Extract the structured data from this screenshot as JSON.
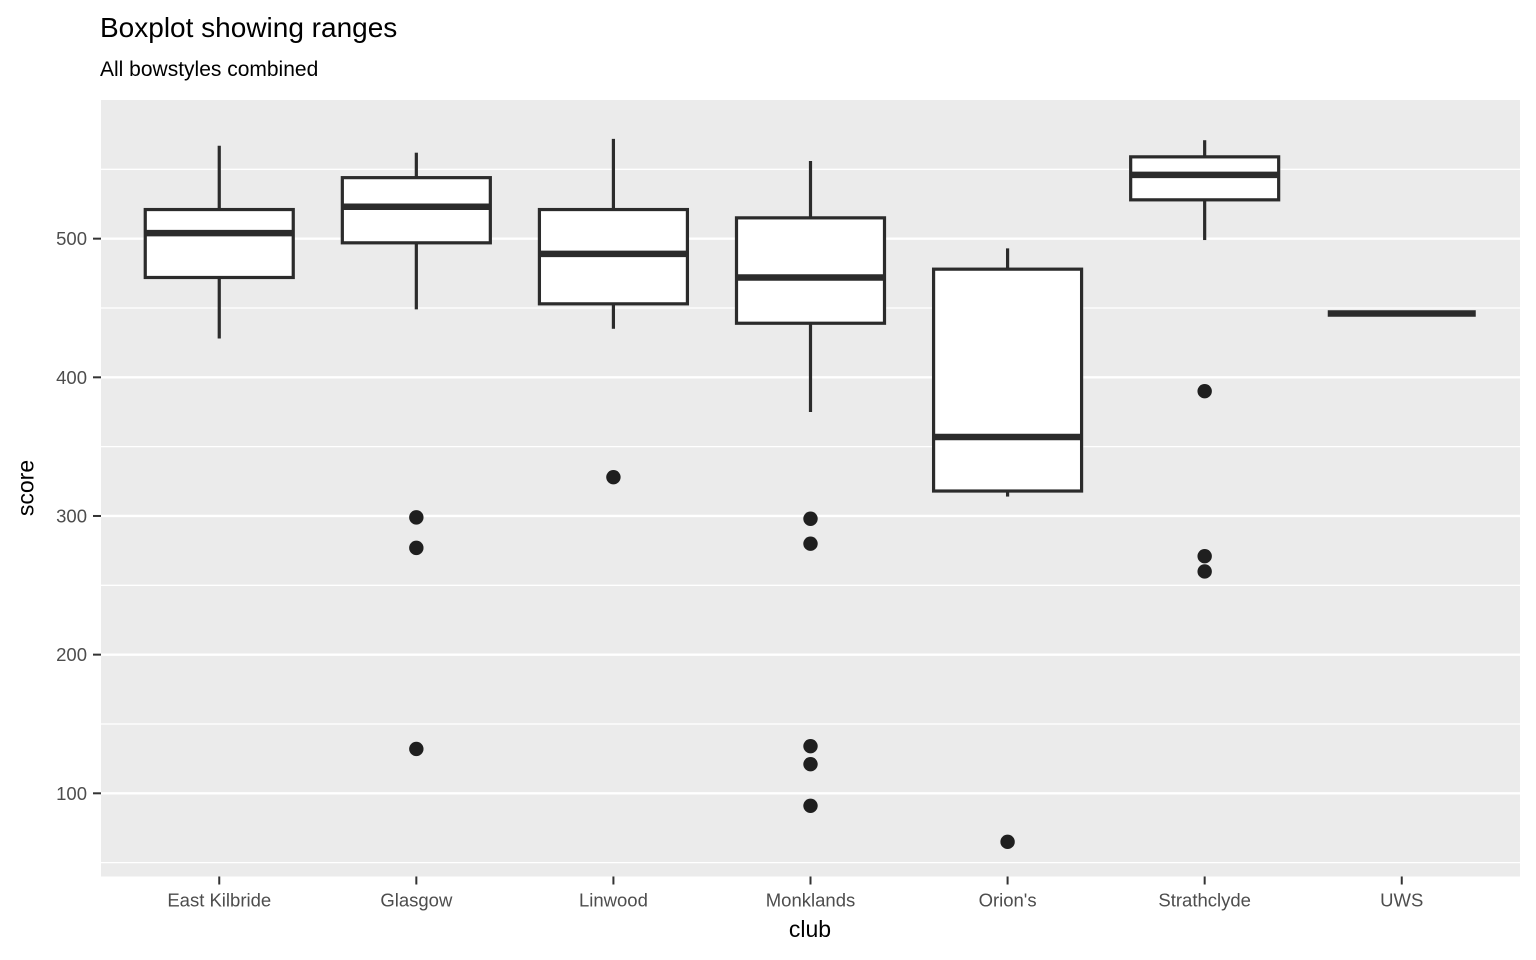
{
  "title": "Boxplot showing ranges",
  "subtitle": "All bowstyles combined",
  "chart_data": {
    "type": "boxplot",
    "title": "Boxplot showing ranges",
    "subtitle": "All bowstyles combined",
    "xlabel": "club",
    "ylabel": "score",
    "categories": [
      "East Kilbride",
      "Glasgow",
      "Linwood",
      "Monklands",
      "Orion's",
      "Strathclyde",
      "UWS"
    ],
    "y_ticks": [
      100,
      200,
      300,
      400,
      500
    ],
    "y_minor_ticks": [
      50,
      150,
      250,
      350,
      450,
      550
    ],
    "y_domain": [
      40,
      600
    ],
    "grid": "major-and-minor",
    "legend": "none",
    "boxes": [
      {
        "club": "East Kilbride",
        "whisker_low": 428,
        "q1": 472,
        "median": 504,
        "q3": 521,
        "whisker_high": 567,
        "outliers": []
      },
      {
        "club": "Glasgow",
        "whisker_low": 449,
        "q1": 497,
        "median": 523,
        "q3": 544,
        "whisker_high": 562,
        "outliers": [
          299,
          277,
          132
        ]
      },
      {
        "club": "Linwood",
        "whisker_low": 435,
        "q1": 453,
        "median": 489,
        "q3": 521,
        "whisker_high": 572,
        "outliers": [
          328
        ]
      },
      {
        "club": "Monklands",
        "whisker_low": 375,
        "q1": 439,
        "median": 472,
        "q3": 515,
        "whisker_high": 556,
        "outliers": [
          298,
          280,
          134,
          121,
          91
        ]
      },
      {
        "club": "Orion's",
        "whisker_low": 314,
        "q1": 318,
        "median": 357,
        "q3": 478,
        "whisker_high": 493,
        "outliers": [
          65
        ]
      },
      {
        "club": "Strathclyde",
        "whisker_low": 499,
        "q1": 528,
        "median": 546,
        "q3": 559,
        "whisker_high": 571,
        "outliers": [
          390,
          271,
          260
        ]
      },
      {
        "club": "UWS",
        "whisker_low": 446,
        "q1": 446,
        "median": 446,
        "q3": 446,
        "whisker_high": 446,
        "outliers": []
      }
    ],
    "colors": {
      "panel_bg": "#EBEBEB",
      "grid": "#FFFFFF",
      "box_stroke": "#2B2B2B",
      "box_fill": "#FFFFFF",
      "outlier": "#1F1F1F",
      "axis_text": "#4D4D4D",
      "tick": "#333333"
    }
  }
}
